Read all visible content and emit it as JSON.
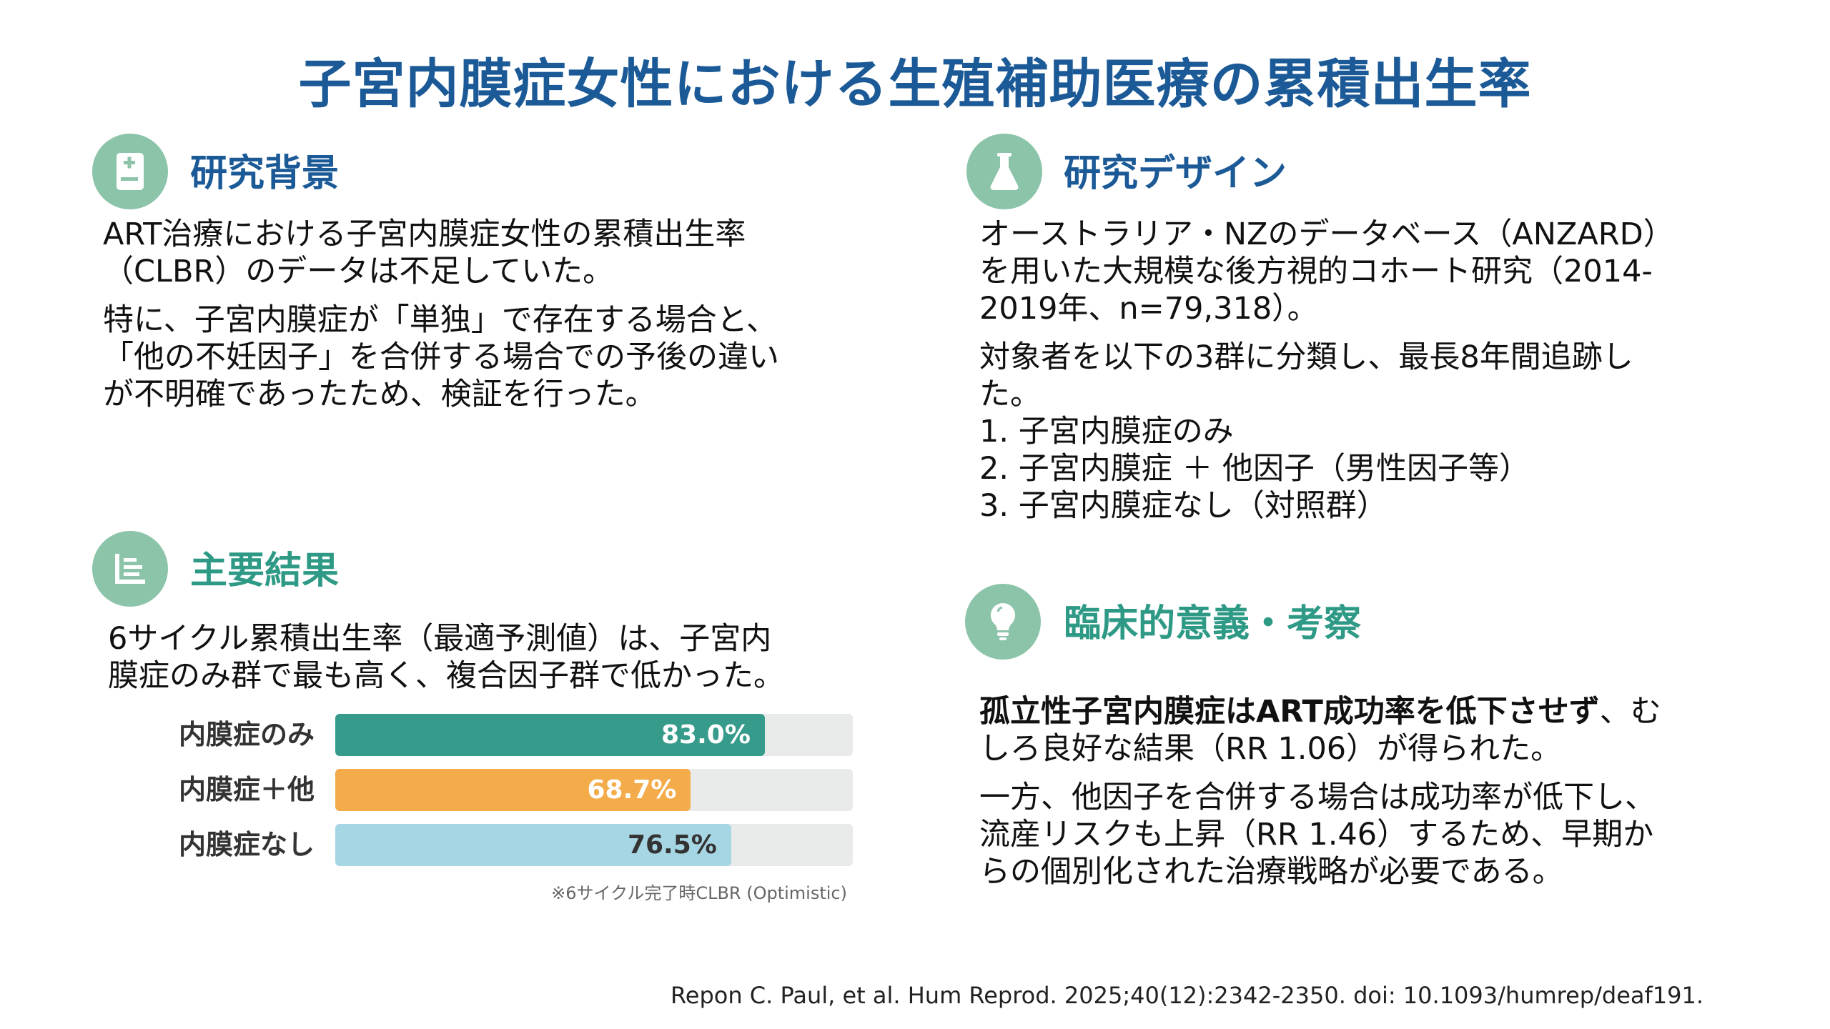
{
  "title": "子宮内膜症女性における生殖補助医療の累積出生率",
  "colors": {
    "title": "#1b5a97",
    "accent_green": "#2e9a86",
    "icon_bg": "#8cc4aa",
    "bar_track": "#e9ebea"
  },
  "background": {
    "icon": "book-medical-icon",
    "heading": "研究背景",
    "p1": [
      "ART治療における子宮内膜症女性の累積出生率",
      "（CLBR）のデータは不足していた。"
    ],
    "p2": [
      "特に、子宮内膜症が「単独」で存在する場合と、",
      "「他の不妊因子」を合併する場合での予後の違い",
      "が不明確であったため、検証を行った。"
    ]
  },
  "design": {
    "icon": "flask-icon",
    "heading": "研究デザイン",
    "p1": [
      "オーストラリア・NZのデータベース（ANZARD）",
      "を用いた大規模な後方視的コホート研究（2014-",
      "2019年、n=79,318）。"
    ],
    "p2": [
      "対象者を以下の3群に分類し、最長8年間追跡し",
      "た。"
    ],
    "list": [
      "1. 子宮内膜症のみ",
      "2. 子宮内膜症 ＋ 他因子（男性因子等）",
      "3. 子宮内膜症なし（対照群）"
    ]
  },
  "results": {
    "icon": "chart-bar-icon",
    "heading": "主要結果",
    "p1": [
      "6サイクル累積出生率（最適予測値）は、子宮内",
      "膜症のみ群で最も高く、複合因子群で低かった。"
    ],
    "footnote": "※6サイクル完了時CLBR (Optimistic)"
  },
  "chart_data": {
    "type": "bar",
    "orientation": "horizontal",
    "categories": [
      "内膜症のみ",
      "内膜症＋他",
      "内膜症なし"
    ],
    "values": [
      83.0,
      68.7,
      76.5
    ],
    "labels": [
      "83.0%",
      "68.7%",
      "76.5%"
    ],
    "xlim": [
      0,
      100
    ],
    "colors": [
      "#379b8b",
      "#f3ac49",
      "#a6d5e3"
    ],
    "label_colors": [
      "#ffffff",
      "#ffffff",
      "#333333"
    ]
  },
  "discussion": {
    "icon": "lightbulb-icon",
    "heading": "臨床的意義・考察",
    "p1_bold": "孤立性子宮内膜症はART成功率を低下させず",
    "p1_rest": "、む",
    "p1_line2": "しろ良好な結果（RR 1.06）が得られた。",
    "p2": [
      "一方、他因子を合併する場合は成功率が低下し、",
      "流産リスクも上昇（RR 1.46）するため、早期か",
      "らの個別化された治療戦略が必要である。"
    ]
  },
  "citation": "Repon C. Paul, et al. Hum Reprod. 2025;40(12):2342-2350. doi: 10.1093/humrep/deaf191."
}
